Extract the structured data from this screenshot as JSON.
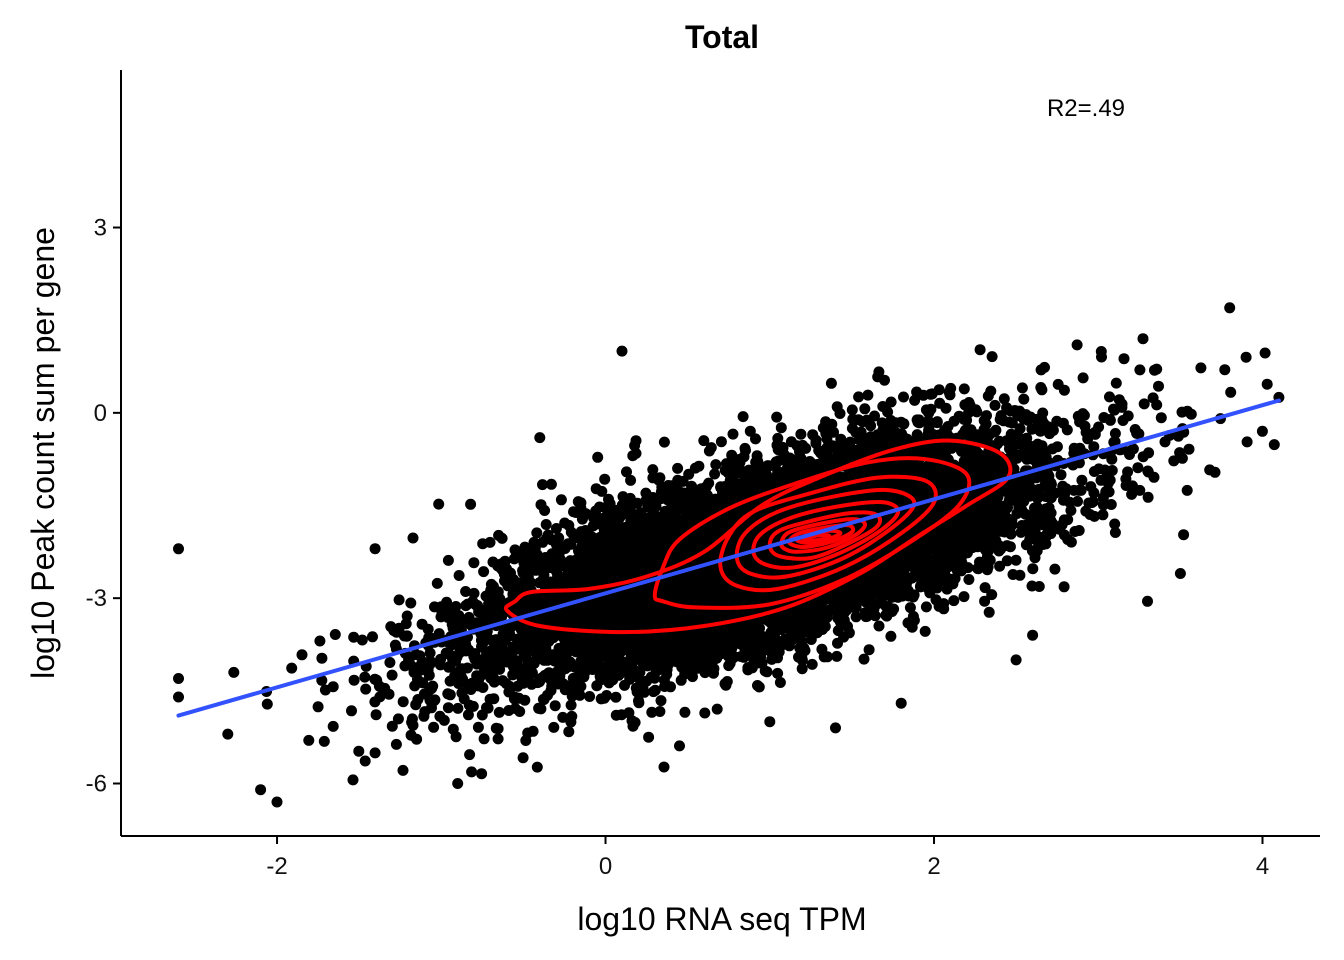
{
  "chart_data": {
    "type": "scatter",
    "title": "Total",
    "xlabel": "log10 RNA seq TPM",
    "ylabel": "log10 Peak count sum per gene",
    "xlim": [
      -2.95,
      4.35
    ],
    "ylim": [
      -6.85,
      5.55
    ],
    "xticks": [
      -2,
      0,
      2,
      4
    ],
    "yticks": [
      -6,
      -3,
      0,
      3
    ],
    "xtick_labels": [
      "-2",
      "0",
      "2",
      "4"
    ],
    "ytick_labels": [
      "-6",
      "-3",
      "0",
      "3"
    ],
    "annotation": {
      "text": "R2=.49",
      "x": 3.0,
      "y": 4.9
    },
    "grid": false,
    "point_color": "#000000",
    "contour_color": "#ff0000",
    "fit_color": "#3352ff",
    "scatter": {
      "n_points": 9000,
      "x_range": [
        -2.6,
        4.1
      ],
      "main_cluster": {
        "x_mean": 0.95,
        "x_sd": 0.85,
        "y_slope": 0.76,
        "y_intercept": -3.05,
        "y_residual_sd": 0.72
      },
      "outliers": [
        {
          "x": 0.1,
          "y": 1.0
        },
        {
          "x": -2.6,
          "y": -2.2
        },
        {
          "x": -2.6,
          "y": -4.3
        },
        {
          "x": -2.6,
          "y": -4.6
        },
        {
          "x": 3.8,
          "y": 1.7
        },
        {
          "x": 4.1,
          "y": 0.25
        },
        {
          "x": 3.3,
          "y": -3.05
        },
        {
          "x": 1.4,
          "y": -5.1
        },
        {
          "x": -0.9,
          "y": -6.0
        },
        {
          "x": -2.0,
          "y": -6.3
        },
        {
          "x": -2.1,
          "y": -6.1
        },
        {
          "x": -2.3,
          "y": -5.2
        },
        {
          "x": 3.5,
          "y": -2.6
        },
        {
          "x": 3.9,
          "y": 0.9
        },
        {
          "x": 2.6,
          "y": -3.6
        },
        {
          "x": 2.5,
          "y": -4.0
        },
        {
          "x": 1.0,
          "y": -5.0
        },
        {
          "x": -0.4,
          "y": -0.4
        },
        {
          "x": 1.8,
          "y": -4.7
        },
        {
          "x": 3.1,
          "y": -1.8
        }
      ]
    },
    "fit_line": {
      "x": [
        -2.6,
        4.1
      ],
      "y": [
        -4.9,
        0.2
      ]
    },
    "contours": [
      {
        "level": 1,
        "points": [
          [
            -0.55,
            -3.05
          ],
          [
            -0.45,
            -2.9
          ],
          [
            -0.1,
            -2.85
          ],
          [
            0.25,
            -2.65
          ],
          [
            0.6,
            -2.25
          ],
          [
            0.95,
            -1.5
          ],
          [
            1.3,
            -1.05
          ],
          [
            1.75,
            -0.6
          ],
          [
            2.1,
            -0.45
          ],
          [
            2.4,
            -0.65
          ],
          [
            2.45,
            -1.05
          ],
          [
            2.2,
            -1.5
          ],
          [
            1.9,
            -2.0
          ],
          [
            1.55,
            -2.6
          ],
          [
            1.1,
            -3.15
          ],
          [
            0.6,
            -3.45
          ],
          [
            0.1,
            -3.55
          ],
          [
            -0.4,
            -3.45
          ],
          [
            -0.6,
            -3.2
          ]
        ]
      },
      {
        "level": 2,
        "points": [
          [
            0.3,
            -2.95
          ],
          [
            0.35,
            -2.5
          ],
          [
            0.45,
            -2.05
          ],
          [
            0.75,
            -1.55
          ],
          [
            1.15,
            -1.15
          ],
          [
            1.6,
            -0.8
          ],
          [
            1.95,
            -0.75
          ],
          [
            2.2,
            -1.0
          ],
          [
            2.15,
            -1.5
          ],
          [
            1.85,
            -2.1
          ],
          [
            1.45,
            -2.7
          ],
          [
            1.0,
            -3.1
          ],
          [
            0.55,
            -3.15
          ],
          [
            0.35,
            -3.05
          ]
        ]
      },
      {
        "level": 3,
        "points": [
          [
            0.7,
            -2.5
          ],
          [
            0.75,
            -2.0
          ],
          [
            0.9,
            -1.6
          ],
          [
            1.25,
            -1.3
          ],
          [
            1.65,
            -1.05
          ],
          [
            1.95,
            -1.1
          ],
          [
            2.0,
            -1.45
          ],
          [
            1.8,
            -1.95
          ],
          [
            1.45,
            -2.5
          ],
          [
            1.05,
            -2.85
          ],
          [
            0.8,
            -2.8
          ]
        ]
      },
      {
        "level": 4,
        "points": [
          [
            0.8,
            -2.35
          ],
          [
            0.85,
            -1.95
          ],
          [
            1.05,
            -1.6
          ],
          [
            1.4,
            -1.35
          ],
          [
            1.72,
            -1.25
          ],
          [
            1.88,
            -1.45
          ],
          [
            1.75,
            -1.85
          ],
          [
            1.45,
            -2.35
          ],
          [
            1.1,
            -2.65
          ],
          [
            0.88,
            -2.6
          ]
        ]
      },
      {
        "level": 5,
        "points": [
          [
            0.9,
            -2.25
          ],
          [
            0.95,
            -1.95
          ],
          [
            1.15,
            -1.68
          ],
          [
            1.45,
            -1.5
          ],
          [
            1.7,
            -1.45
          ],
          [
            1.78,
            -1.62
          ],
          [
            1.65,
            -1.95
          ],
          [
            1.4,
            -2.3
          ],
          [
            1.15,
            -2.5
          ],
          [
            0.97,
            -2.45
          ]
        ]
      },
      {
        "level": 6,
        "points": [
          [
            1.0,
            -2.15
          ],
          [
            1.05,
            -1.92
          ],
          [
            1.25,
            -1.75
          ],
          [
            1.5,
            -1.62
          ],
          [
            1.65,
            -1.65
          ],
          [
            1.65,
            -1.85
          ],
          [
            1.45,
            -2.15
          ],
          [
            1.25,
            -2.35
          ],
          [
            1.06,
            -2.32
          ]
        ]
      },
      {
        "level": 7,
        "points": [
          [
            1.07,
            -2.1
          ],
          [
            1.12,
            -1.93
          ],
          [
            1.3,
            -1.8
          ],
          [
            1.5,
            -1.72
          ],
          [
            1.58,
            -1.8
          ],
          [
            1.52,
            -1.98
          ],
          [
            1.35,
            -2.18
          ],
          [
            1.17,
            -2.25
          ],
          [
            1.09,
            -2.2
          ]
        ]
      },
      {
        "level": 8,
        "points": [
          [
            1.12,
            -2.07
          ],
          [
            1.18,
            -1.95
          ],
          [
            1.35,
            -1.85
          ],
          [
            1.48,
            -1.82
          ],
          [
            1.5,
            -1.93
          ],
          [
            1.38,
            -2.08
          ],
          [
            1.22,
            -2.17
          ],
          [
            1.14,
            -2.14
          ]
        ]
      },
      {
        "level": 9,
        "points": [
          [
            1.17,
            -2.05
          ],
          [
            1.25,
            -1.96
          ],
          [
            1.37,
            -1.91
          ],
          [
            1.43,
            -1.95
          ],
          [
            1.36,
            -2.04
          ],
          [
            1.25,
            -2.1
          ],
          [
            1.19,
            -2.09
          ]
        ]
      },
      {
        "level": 10,
        "points": [
          [
            1.21,
            -2.04
          ],
          [
            1.28,
            -1.99
          ],
          [
            1.35,
            -1.98
          ],
          [
            1.36,
            -2.02
          ],
          [
            1.29,
            -2.06
          ],
          [
            1.23,
            -2.07
          ]
        ]
      }
    ]
  }
}
